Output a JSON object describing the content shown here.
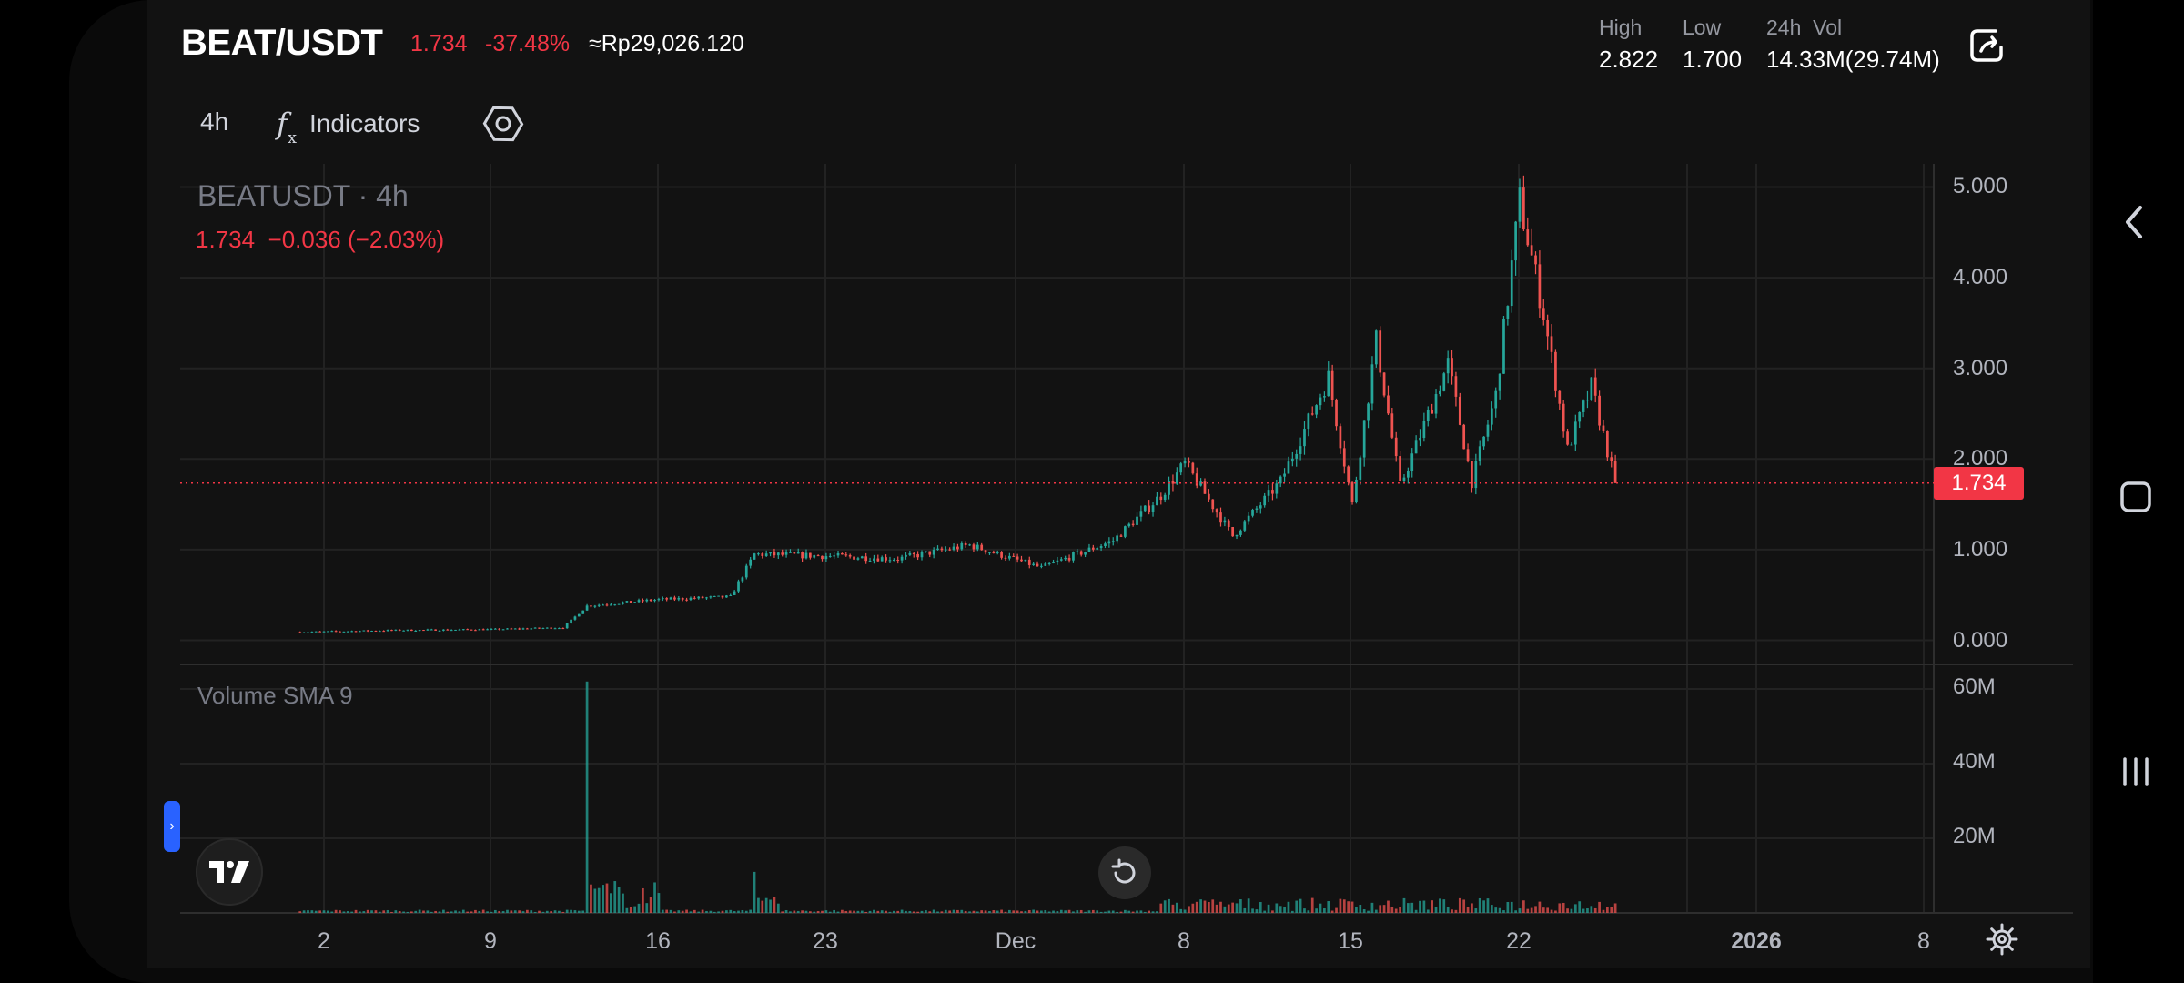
{
  "header": {
    "pair": "BEAT/USDT",
    "last_price": "1.734",
    "change_pct": "-37.48%",
    "idr_value": "≈Rp29,026.120",
    "stats": [
      {
        "label": "High",
        "value": "2.822"
      },
      {
        "label": "Low",
        "value": "1.700"
      },
      {
        "label": "24h  Vol",
        "value": "14.33M(29.74M)"
      }
    ]
  },
  "toolbar": {
    "interval": "4h",
    "indicators_label": "Indicators"
  },
  "legend": {
    "symbol": "BEATUSDT · 4h",
    "ohlc": "1.734  −0.036 (−2.03%)"
  },
  "volume_pane": {
    "label": "Volume SMA 9"
  },
  "price_tag": "1.734",
  "colors": {
    "up": "#26a69a",
    "down": "#ef5350",
    "accent": "#f23645",
    "blue": "#2962ff"
  },
  "chart_data": {
    "type": "candlestick",
    "price_axis": {
      "ticks": [
        "5.000",
        "4.000",
        "3.000",
        "2.000",
        "1.000",
        "0.000"
      ],
      "range": [
        0,
        5
      ]
    },
    "volume_axis": {
      "ticks": [
        "60M",
        "40M",
        "20M"
      ],
      "range": [
        0,
        64
      ]
    },
    "x_ticks": [
      "2",
      "9",
      "16",
      "23",
      "Dec",
      "8",
      "15",
      "22",
      "2026",
      "8"
    ],
    "last_price": 1.734,
    "grid": true,
    "close_series_approx": [
      {
        "x": "Nov 1",
        "y": 0.09
      },
      {
        "x": "Nov 5",
        "y": 0.11
      },
      {
        "x": "Nov 9",
        "y": 0.12
      },
      {
        "x": "Nov 12",
        "y": 0.14
      },
      {
        "x": "Nov 13",
        "y": 0.38
      },
      {
        "x": "Nov 16",
        "y": 0.45
      },
      {
        "x": "Nov 19",
        "y": 0.48
      },
      {
        "x": "Nov 20",
        "y": 0.95
      },
      {
        "x": "Nov 23",
        "y": 0.93
      },
      {
        "x": "Nov 26",
        "y": 0.9
      },
      {
        "x": "Nov 29",
        "y": 1.05
      },
      {
        "x": "Dec 2",
        "y": 0.8
      },
      {
        "x": "Dec 5",
        "y": 1.1
      },
      {
        "x": "Dec 7",
        "y": 1.6
      },
      {
        "x": "Dec 8",
        "y": 1.95
      },
      {
        "x": "Dec 10",
        "y": 1.15
      },
      {
        "x": "Dec 12",
        "y": 1.75
      },
      {
        "x": "Dec 14",
        "y": 2.9
      },
      {
        "x": "Dec 15",
        "y": 1.5
      },
      {
        "x": "Dec 16",
        "y": 3.3
      },
      {
        "x": "Dec 17",
        "y": 1.7
      },
      {
        "x": "Dec 19",
        "y": 3.05
      },
      {
        "x": "Dec 20",
        "y": 1.75
      },
      {
        "x": "Dec 21",
        "y": 2.7
      },
      {
        "x": "Dec 22",
        "y": 4.85
      },
      {
        "x": "Dec 23",
        "y": 3.6
      },
      {
        "x": "Dec 24",
        "y": 2.1
      },
      {
        "x": "Dec 25",
        "y": 2.8
      },
      {
        "x": "Dec 26",
        "y": 1.734
      }
    ],
    "volume_series_approx": [
      {
        "x": "Nov 13",
        "y": 62
      },
      {
        "x": "Nov 20",
        "y": 11
      },
      {
        "x": "Dec 22",
        "y": 6
      }
    ]
  }
}
